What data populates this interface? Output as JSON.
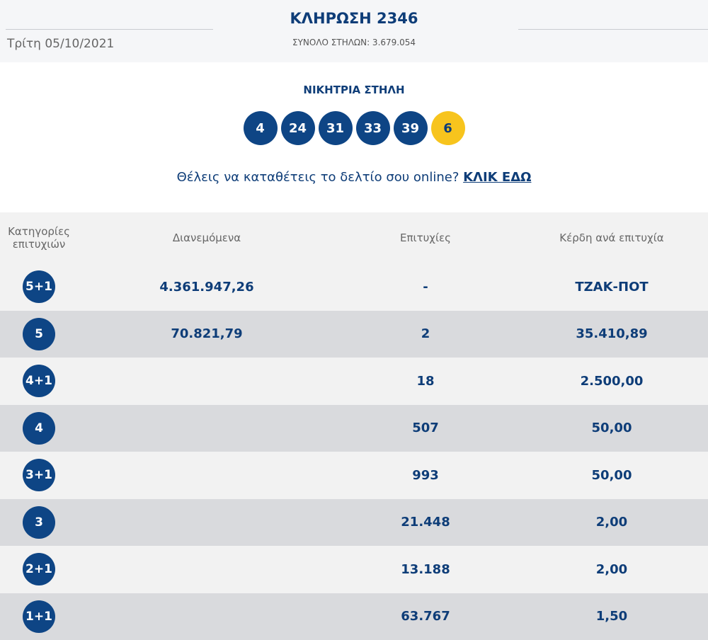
{
  "header": {
    "title": "ΚΛΗΡΩΣΗ 2346",
    "date": "Τρίτη 05/10/2021",
    "total": "ΣΥΝΟΛΟ ΣΤΗΛΩΝ: 3.679.054"
  },
  "winning": {
    "title": "ΝΙΚΗΤΡΙΑ ΣΤΗΛΗ",
    "numbers": [
      4,
      24,
      31,
      33,
      39
    ],
    "joker": 6
  },
  "cta": {
    "text": "Θέλεις να καταθέτεις το δελτίο σου online?",
    "link": "ΚΛΙΚ ΕΔΩ"
  },
  "table": {
    "headers": [
      "Κατηγορίες επιτυχιών",
      "Διανεμόμενα",
      "Επιτυχίες",
      "Κέρδη ανά επιτυχία"
    ],
    "rows": [
      {
        "category": "5+1",
        "distributed": "4.361.947,26",
        "winners": "-",
        "prize": "ΤΖΑΚ-ΠΟΤ"
      },
      {
        "category": "5",
        "distributed": "70.821,79",
        "winners": "2",
        "prize": "35.410,89"
      },
      {
        "category": "4+1",
        "winners": "18",
        "prize": "2.500,00"
      },
      {
        "category": "4",
        "winners": "507",
        "prize": "50,00"
      },
      {
        "category": "3+1",
        "winners": "993",
        "prize": "50,00"
      },
      {
        "category": "3",
        "winners": "21.448",
        "prize": "2,00"
      },
      {
        "category": "2+1",
        "winners": "13.188",
        "prize": "2,00"
      },
      {
        "category": "1+1",
        "winners": "63.767",
        "prize": "1,50"
      }
    ]
  }
}
